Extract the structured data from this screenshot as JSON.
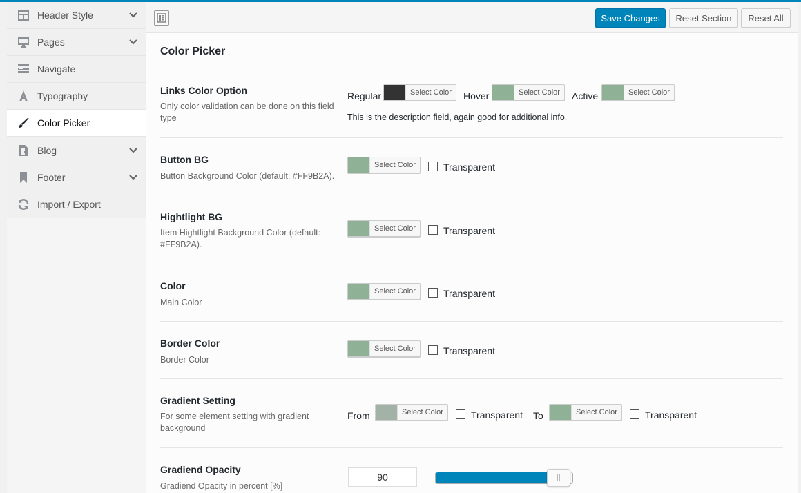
{
  "sidebar": {
    "items": [
      {
        "label": "Header Style",
        "icon": "layout-icon",
        "has_chevron": true,
        "active": false
      },
      {
        "label": "Pages",
        "icon": "monitor-icon",
        "has_chevron": true,
        "active": false
      },
      {
        "label": "Navigate",
        "icon": "menu-icon",
        "has_chevron": false,
        "active": false
      },
      {
        "label": "Typography",
        "icon": "typography-icon",
        "has_chevron": false,
        "active": false
      },
      {
        "label": "Color Picker",
        "icon": "brush-icon",
        "has_chevron": false,
        "active": true
      },
      {
        "label": "Blog",
        "icon": "add-page-icon",
        "has_chevron": true,
        "active": false
      },
      {
        "label": "Footer",
        "icon": "bookmark-icon",
        "has_chevron": true,
        "active": false
      },
      {
        "label": "Import / Export",
        "icon": "refresh-icon",
        "has_chevron": false,
        "active": false
      }
    ]
  },
  "toolbar": {
    "save_label": "Save Changes",
    "reset_section_label": "Reset Section",
    "reset_all_label": "Reset All"
  },
  "section": {
    "title": "Color Picker"
  },
  "picker_label": "Select Color",
  "transparent_label": "Transparent",
  "fields": {
    "links": {
      "title": "Links Color Option",
      "desc": "Only color validation can be done on this field type",
      "regular_label": "Regular",
      "hover_label": "Hover",
      "active_label": "Active",
      "regular_color": "#333333",
      "hover_color": "#8fb296",
      "active_color": "#8fb296",
      "field_desc": "This is the description field, again good for additional info."
    },
    "button_bg": {
      "title": "Button BG",
      "desc": "Button Background Color (default: #FF9B2A).",
      "color": "#8fb296"
    },
    "highlight_bg": {
      "title": "Hightlight BG",
      "desc": "Item Hightlight Background Color (default: #FF9B2A).",
      "color": "#8fb296"
    },
    "color": {
      "title": "Color",
      "desc": "Main Color",
      "color": "#8fb296"
    },
    "border_color": {
      "title": "Border Color",
      "desc": "Border Color",
      "color": "#8fb296"
    },
    "gradient": {
      "title": "Gradient Setting",
      "desc": "For some element setting with gradient background",
      "from_label": "From",
      "to_label": "To",
      "from_color": "#a3b2a6",
      "to_color": "#8fb296"
    },
    "opacity": {
      "title": "Gradiend Opacity",
      "desc": "Gradiend Opacity in percent [%]",
      "value": "90",
      "percent": 90
    }
  },
  "colors": {
    "accent": "#0085ba"
  }
}
